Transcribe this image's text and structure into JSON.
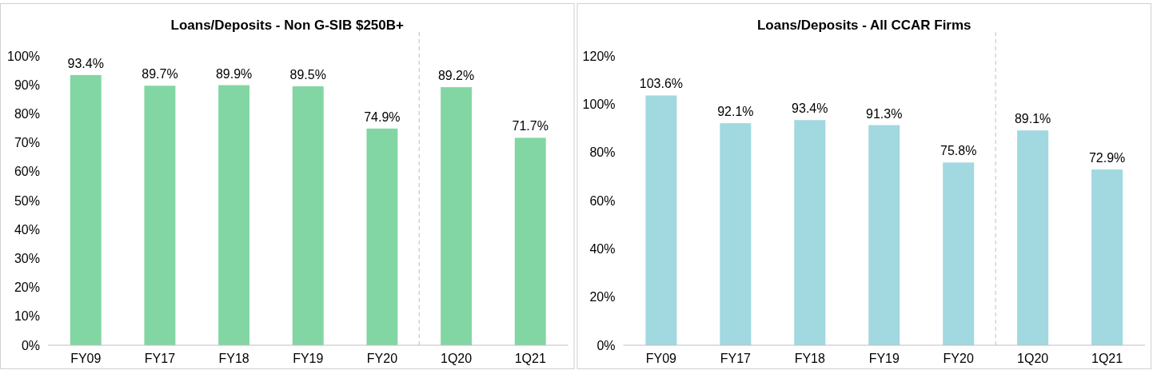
{
  "chart_data": [
    {
      "type": "bar",
      "title": "Loans/Deposits - Non G-SIB $250B+",
      "categories": [
        "FY09",
        "FY17",
        "FY18",
        "FY19",
        "FY20",
        "1Q20",
        "1Q21"
      ],
      "values": [
        93.4,
        89.7,
        89.9,
        89.5,
        74.9,
        89.2,
        71.7
      ],
      "value_labels": [
        "93.4%",
        "89.7%",
        "89.9%",
        "89.5%",
        "74.9%",
        "89.2%",
        "71.7%"
      ],
      "color": "#82d6a3",
      "ylim": [
        0,
        100
      ],
      "yticks": [
        {
          "value": 0,
          "label": "0%"
        },
        {
          "value": 10,
          "label": "10%"
        },
        {
          "value": 20,
          "label": "20%"
        },
        {
          "value": 30,
          "label": "30%"
        },
        {
          "value": 40,
          "label": "40%"
        },
        {
          "value": 50,
          "label": "50%"
        },
        {
          "value": 60,
          "label": "60%"
        },
        {
          "value": 70,
          "label": "70%"
        },
        {
          "value": 80,
          "label": "80%"
        },
        {
          "value": 90,
          "label": "90%"
        },
        {
          "value": 100,
          "label": "100%"
        }
      ],
      "grid": false
    },
    {
      "type": "bar",
      "title": "Loans/Deposits - All CCAR Firms",
      "categories": [
        "FY09",
        "FY17",
        "FY18",
        "FY19",
        "FY20",
        "1Q20",
        "1Q21"
      ],
      "values": [
        103.6,
        92.1,
        93.4,
        91.3,
        75.8,
        89.1,
        72.9
      ],
      "value_labels": [
        "103.6%",
        "92.1%",
        "93.4%",
        "91.3%",
        "75.8%",
        "89.1%",
        "72.9%"
      ],
      "color": "#a2d8e0",
      "ylim": [
        0,
        120
      ],
      "yticks": [
        {
          "value": 0,
          "label": "0%"
        },
        {
          "value": 20,
          "label": "20%"
        },
        {
          "value": 40,
          "label": "40%"
        },
        {
          "value": 60,
          "label": "60%"
        },
        {
          "value": 80,
          "label": "80%"
        },
        {
          "value": 100,
          "label": "100%"
        },
        {
          "value": 120,
          "label": "120%"
        }
      ],
      "grid": false
    }
  ]
}
